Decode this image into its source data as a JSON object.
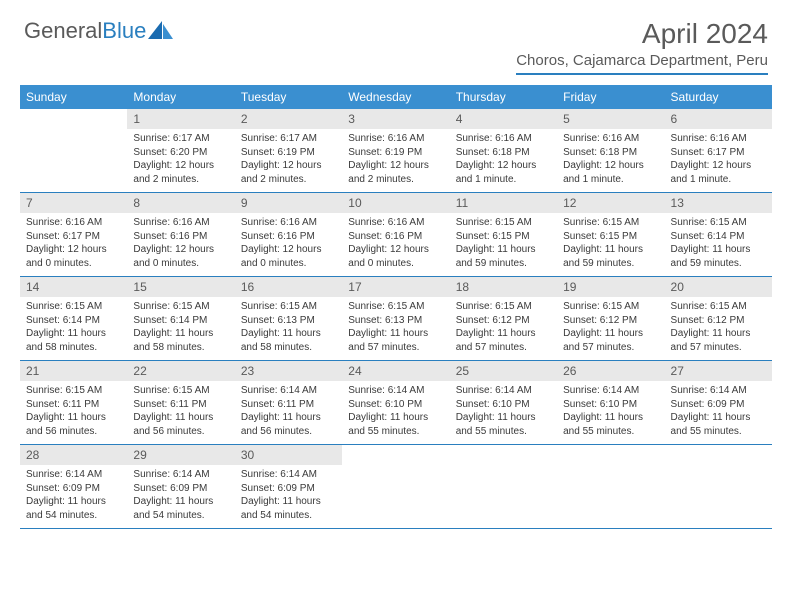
{
  "logo": {
    "text_general": "General",
    "text_blue": "Blue"
  },
  "title": "April 2024",
  "location": "Choros, Cajamarca Department, Peru",
  "colors": {
    "header_bar": "#3a8fd0",
    "accent_line": "#2a7fbf",
    "daynum_bg": "#e8e8e8",
    "text_gray": "#5a5a5a",
    "body_text": "#3a3a3a",
    "bg": "#ffffff"
  },
  "days_of_week": [
    "Sunday",
    "Monday",
    "Tuesday",
    "Wednesday",
    "Thursday",
    "Friday",
    "Saturday"
  ],
  "weeks": [
    [
      null,
      {
        "n": "1",
        "sunrise": "Sunrise: 6:17 AM",
        "sunset": "Sunset: 6:20 PM",
        "daylight": "Daylight: 12 hours and 2 minutes."
      },
      {
        "n": "2",
        "sunrise": "Sunrise: 6:17 AM",
        "sunset": "Sunset: 6:19 PM",
        "daylight": "Daylight: 12 hours and 2 minutes."
      },
      {
        "n": "3",
        "sunrise": "Sunrise: 6:16 AM",
        "sunset": "Sunset: 6:19 PM",
        "daylight": "Daylight: 12 hours and 2 minutes."
      },
      {
        "n": "4",
        "sunrise": "Sunrise: 6:16 AM",
        "sunset": "Sunset: 6:18 PM",
        "daylight": "Daylight: 12 hours and 1 minute."
      },
      {
        "n": "5",
        "sunrise": "Sunrise: 6:16 AM",
        "sunset": "Sunset: 6:18 PM",
        "daylight": "Daylight: 12 hours and 1 minute."
      },
      {
        "n": "6",
        "sunrise": "Sunrise: 6:16 AM",
        "sunset": "Sunset: 6:17 PM",
        "daylight": "Daylight: 12 hours and 1 minute."
      }
    ],
    [
      {
        "n": "7",
        "sunrise": "Sunrise: 6:16 AM",
        "sunset": "Sunset: 6:17 PM",
        "daylight": "Daylight: 12 hours and 0 minutes."
      },
      {
        "n": "8",
        "sunrise": "Sunrise: 6:16 AM",
        "sunset": "Sunset: 6:16 PM",
        "daylight": "Daylight: 12 hours and 0 minutes."
      },
      {
        "n": "9",
        "sunrise": "Sunrise: 6:16 AM",
        "sunset": "Sunset: 6:16 PM",
        "daylight": "Daylight: 12 hours and 0 minutes."
      },
      {
        "n": "10",
        "sunrise": "Sunrise: 6:16 AM",
        "sunset": "Sunset: 6:16 PM",
        "daylight": "Daylight: 12 hours and 0 minutes."
      },
      {
        "n": "11",
        "sunrise": "Sunrise: 6:15 AM",
        "sunset": "Sunset: 6:15 PM",
        "daylight": "Daylight: 11 hours and 59 minutes."
      },
      {
        "n": "12",
        "sunrise": "Sunrise: 6:15 AM",
        "sunset": "Sunset: 6:15 PM",
        "daylight": "Daylight: 11 hours and 59 minutes."
      },
      {
        "n": "13",
        "sunrise": "Sunrise: 6:15 AM",
        "sunset": "Sunset: 6:14 PM",
        "daylight": "Daylight: 11 hours and 59 minutes."
      }
    ],
    [
      {
        "n": "14",
        "sunrise": "Sunrise: 6:15 AM",
        "sunset": "Sunset: 6:14 PM",
        "daylight": "Daylight: 11 hours and 58 minutes."
      },
      {
        "n": "15",
        "sunrise": "Sunrise: 6:15 AM",
        "sunset": "Sunset: 6:14 PM",
        "daylight": "Daylight: 11 hours and 58 minutes."
      },
      {
        "n": "16",
        "sunrise": "Sunrise: 6:15 AM",
        "sunset": "Sunset: 6:13 PM",
        "daylight": "Daylight: 11 hours and 58 minutes."
      },
      {
        "n": "17",
        "sunrise": "Sunrise: 6:15 AM",
        "sunset": "Sunset: 6:13 PM",
        "daylight": "Daylight: 11 hours and 57 minutes."
      },
      {
        "n": "18",
        "sunrise": "Sunrise: 6:15 AM",
        "sunset": "Sunset: 6:12 PM",
        "daylight": "Daylight: 11 hours and 57 minutes."
      },
      {
        "n": "19",
        "sunrise": "Sunrise: 6:15 AM",
        "sunset": "Sunset: 6:12 PM",
        "daylight": "Daylight: 11 hours and 57 minutes."
      },
      {
        "n": "20",
        "sunrise": "Sunrise: 6:15 AM",
        "sunset": "Sunset: 6:12 PM",
        "daylight": "Daylight: 11 hours and 57 minutes."
      }
    ],
    [
      {
        "n": "21",
        "sunrise": "Sunrise: 6:15 AM",
        "sunset": "Sunset: 6:11 PM",
        "daylight": "Daylight: 11 hours and 56 minutes."
      },
      {
        "n": "22",
        "sunrise": "Sunrise: 6:15 AM",
        "sunset": "Sunset: 6:11 PM",
        "daylight": "Daylight: 11 hours and 56 minutes."
      },
      {
        "n": "23",
        "sunrise": "Sunrise: 6:14 AM",
        "sunset": "Sunset: 6:11 PM",
        "daylight": "Daylight: 11 hours and 56 minutes."
      },
      {
        "n": "24",
        "sunrise": "Sunrise: 6:14 AM",
        "sunset": "Sunset: 6:10 PM",
        "daylight": "Daylight: 11 hours and 55 minutes."
      },
      {
        "n": "25",
        "sunrise": "Sunrise: 6:14 AM",
        "sunset": "Sunset: 6:10 PM",
        "daylight": "Daylight: 11 hours and 55 minutes."
      },
      {
        "n": "26",
        "sunrise": "Sunrise: 6:14 AM",
        "sunset": "Sunset: 6:10 PM",
        "daylight": "Daylight: 11 hours and 55 minutes."
      },
      {
        "n": "27",
        "sunrise": "Sunrise: 6:14 AM",
        "sunset": "Sunset: 6:09 PM",
        "daylight": "Daylight: 11 hours and 55 minutes."
      }
    ],
    [
      {
        "n": "28",
        "sunrise": "Sunrise: 6:14 AM",
        "sunset": "Sunset: 6:09 PM",
        "daylight": "Daylight: 11 hours and 54 minutes."
      },
      {
        "n": "29",
        "sunrise": "Sunrise: 6:14 AM",
        "sunset": "Sunset: 6:09 PM",
        "daylight": "Daylight: 11 hours and 54 minutes."
      },
      {
        "n": "30",
        "sunrise": "Sunrise: 6:14 AM",
        "sunset": "Sunset: 6:09 PM",
        "daylight": "Daylight: 11 hours and 54 minutes."
      },
      null,
      null,
      null,
      null
    ]
  ]
}
